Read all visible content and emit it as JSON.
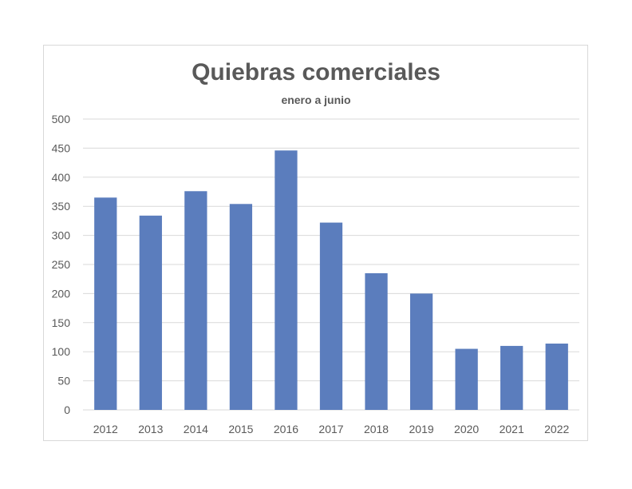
{
  "chart_data": {
    "type": "bar",
    "title": "Quiebras comerciales",
    "subtitle": "enero a junio",
    "xlabel": "",
    "ylabel": "",
    "categories": [
      "2012",
      "2013",
      "2014",
      "2015",
      "2016",
      "2017",
      "2018",
      "2019",
      "2020",
      "2021",
      "2022"
    ],
    "values": [
      365,
      334,
      376,
      354,
      446,
      322,
      235,
      200,
      105,
      110,
      114
    ],
    "ylim": [
      0,
      500
    ],
    "yticks": [
      0,
      50,
      100,
      150,
      200,
      250,
      300,
      350,
      400,
      450,
      500
    ],
    "grid": true,
    "legend": "none",
    "bar_color": "#5b7dbd"
  }
}
